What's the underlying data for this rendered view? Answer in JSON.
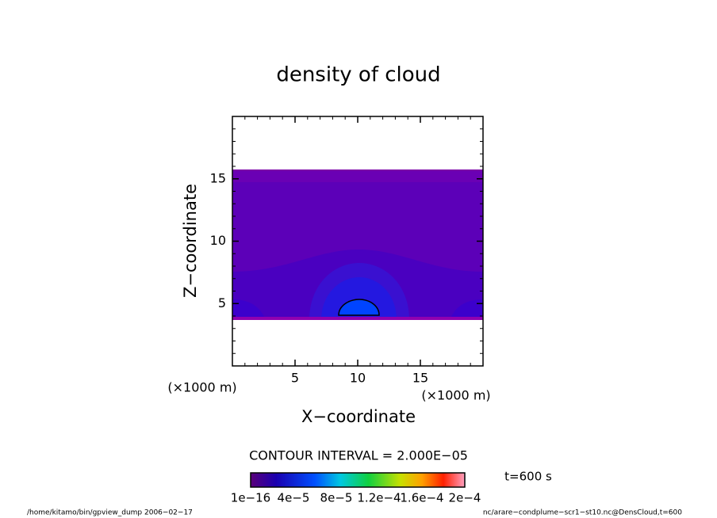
{
  "chart_data": {
    "type": "contour",
    "title": "density of cloud",
    "xlabel": "X−coordinate",
    "ylabel": "Z−coordinate",
    "xunits": "(×1000 m)",
    "yunits": "(×1000 m)",
    "xlim": [
      0,
      20
    ],
    "ylim": [
      0,
      20
    ],
    "xticks": [
      5,
      10,
      15
    ],
    "yticks": [
      5,
      10,
      15
    ],
    "contour_interval": "CONTOUR INTERVAL = 2.000E−05",
    "time_label": "t=600 s",
    "colorbar_lim": [
      0,
      0.0002
    ],
    "colorbar_ticks": [
      {
        "value": 1e-16,
        "label": "1e−16"
      },
      {
        "value": 4e-05,
        "label": "4e−5"
      },
      {
        "value": 8e-05,
        "label": "8e−5"
      },
      {
        "value": 0.00012,
        "label": "1.2e−4"
      },
      {
        "value": 0.00016,
        "label": "1.6e−4"
      },
      {
        "value": 0.0002,
        "label": "2e−4"
      }
    ],
    "footer_left": "/home/kitamo/bin/gpview_dump  2006−02−17",
    "footer_right": "nc/arare−condplume−scr1−st10.nc@DensCloud,t=600"
  }
}
